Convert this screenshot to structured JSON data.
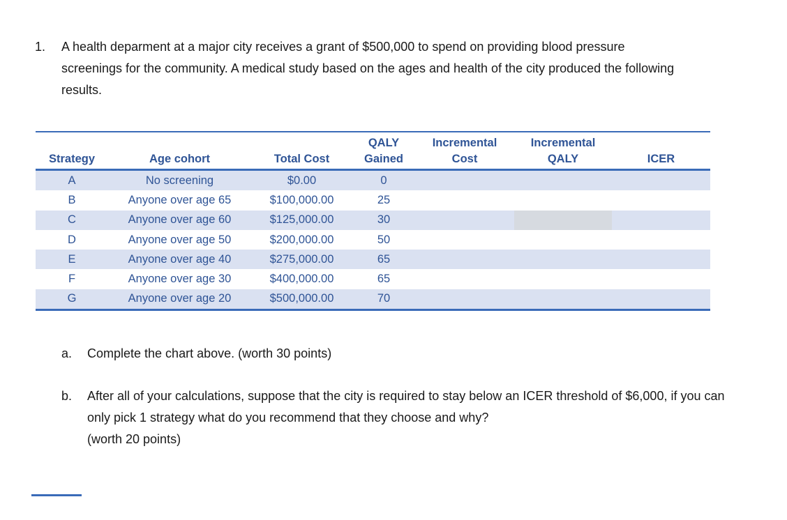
{
  "colors": {
    "table_text": "#2F5496",
    "table_border": "#3A6BB8",
    "row_shade": "#DAE1F1",
    "highlight_cell_gray": "#D6DAE0",
    "body_text": "#1A1A1A"
  },
  "problem": {
    "number": "1.",
    "intro": "A health deparment at a major city receives a grant of $500,000 to spend on providing blood pressure screenings for the community. A medical study based on the ages and health of the city produced the following results."
  },
  "table": {
    "headers": [
      {
        "top": "",
        "bottom": "Strategy"
      },
      {
        "top": "",
        "bottom": "Age cohort"
      },
      {
        "top": "",
        "bottom": "Total Cost"
      },
      {
        "top": "QALY",
        "bottom": "Gained"
      },
      {
        "top": "Incremental",
        "bottom": "Cost"
      },
      {
        "top": "Incremental",
        "bottom": "QALY"
      },
      {
        "top": "",
        "bottom": "ICER"
      }
    ],
    "rows": [
      [
        "A",
        "No screening",
        "$0.00",
        "0",
        "",
        "",
        ""
      ],
      [
        "B",
        "Anyone over age 65",
        "$100,000.00",
        "25",
        "",
        "",
        ""
      ],
      [
        "C",
        "Anyone over age 60",
        "$125,000.00",
        "30",
        "",
        "",
        ""
      ],
      [
        "D",
        "Anyone over age 50",
        "$200,000.00",
        "50",
        "",
        "",
        ""
      ],
      [
        "E",
        "Anyone over age 40",
        "$275,000.00",
        "65",
        "",
        "",
        ""
      ],
      [
        "F",
        "Anyone over age 30",
        "$400,000.00",
        "65",
        "",
        "",
        ""
      ],
      [
        "G",
        "Anyone over age 20",
        "$500,000.00",
        "70",
        "",
        "",
        ""
      ]
    ],
    "highlight_cell": {
      "row": 2,
      "col": 5
    }
  },
  "sub_questions": [
    {
      "label": "a.",
      "text": "Complete the chart above. (worth 30 points)",
      "extra": ""
    },
    {
      "label": "b.",
      "text": "After all of your calculations, suppose that the city is required to stay below an ICER threshold of $6,000, if you can only pick 1 strategy what do you recommend that they choose and why?",
      "extra": "(worth 20 points)"
    }
  ]
}
